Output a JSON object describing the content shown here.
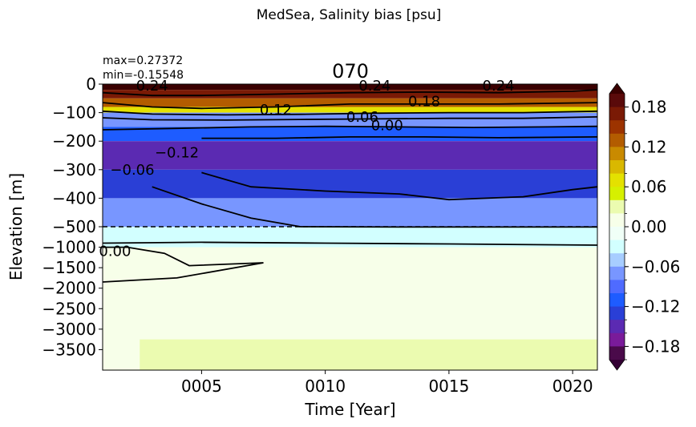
{
  "chart_data": {
    "type": "heatmap",
    "suptitle": "MedSea, Salinity bias [psu]",
    "title": "070",
    "stats": {
      "max": "max=0.27372",
      "min": "min=-0.15548"
    },
    "xlabel": "Time [Year]",
    "ylabel": "Elevation [m]",
    "x_ticks": [
      "0005",
      "0010",
      "0015",
      "0020"
    ],
    "x_tick_values": [
      5,
      10,
      15,
      20
    ],
    "xlim": [
      1,
      21
    ],
    "y_ticks": [
      "0",
      "−100",
      "−200",
      "−300",
      "−400",
      "−500",
      "−1000",
      "−1500",
      "−2000",
      "−2500",
      "−3000",
      "−3500"
    ],
    "y_upper_range": [
      -500,
      0
    ],
    "y_lower_range": [
      -4000,
      -500
    ],
    "split_line": -500,
    "colorbar": {
      "ticks": [
        "0.18",
        "0.12",
        "0.06",
        "0.00",
        "−0.06",
        "−0.12",
        "−0.18"
      ],
      "tick_values": [
        0.18,
        0.12,
        0.06,
        0.0,
        -0.06,
        -0.12,
        -0.18
      ],
      "range": [
        -0.2,
        0.2
      ],
      "extend": "both",
      "levels": [
        {
          "from": 0.18,
          "to": 0.2,
          "color": "#5a0a0a"
        },
        {
          "from": 0.16,
          "to": 0.18,
          "color": "#7a1a05"
        },
        {
          "from": 0.14,
          "to": 0.16,
          "color": "#9c3300"
        },
        {
          "from": 0.12,
          "to": 0.14,
          "color": "#b35c00"
        },
        {
          "from": 0.1,
          "to": 0.12,
          "color": "#c98a00"
        },
        {
          "from": 0.08,
          "to": 0.1,
          "color": "#d9b800"
        },
        {
          "from": 0.06,
          "to": 0.08,
          "color": "#e4e100"
        },
        {
          "from": 0.04,
          "to": 0.06,
          "color": "#d6f000"
        },
        {
          "from": 0.02,
          "to": 0.04,
          "color": "#ebfbb0"
        },
        {
          "from": 0.0,
          "to": 0.02,
          "color": "#f7ffe9"
        },
        {
          "from": -0.02,
          "to": 0.0,
          "color": "#f0fff7"
        },
        {
          "from": -0.04,
          "to": -0.02,
          "color": "#d2ffff"
        },
        {
          "from": -0.06,
          "to": -0.04,
          "color": "#a7cdff"
        },
        {
          "from": -0.08,
          "to": -0.06,
          "color": "#7896ff"
        },
        {
          "from": -0.1,
          "to": -0.08,
          "color": "#4f6bff"
        },
        {
          "from": -0.12,
          "to": -0.1,
          "color": "#1e5cff"
        },
        {
          "from": -0.14,
          "to": -0.12,
          "color": "#2a3fd6"
        },
        {
          "from": -0.16,
          "to": -0.14,
          "color": "#5b2ab2"
        },
        {
          "from": -0.18,
          "to": -0.16,
          "color": "#7a1b9a"
        },
        {
          "from": -0.2,
          "to": -0.18,
          "color": "#4a0a4a"
        }
      ],
      "under_color": "#330033",
      "over_color": "#3a0000"
    },
    "contour_labels": [
      {
        "text": "0.24",
        "x": 3,
        "depth": -5
      },
      {
        "text": "0.24",
        "x": 12,
        "depth": -5
      },
      {
        "text": "0.24",
        "x": 17,
        "depth": -5
      },
      {
        "text": "0.18",
        "x": 14,
        "depth": -60
      },
      {
        "text": "0.12",
        "x": 8,
        "depth": -90
      },
      {
        "text": "0.06",
        "x": 11.5,
        "depth": -115
      },
      {
        "text": "0.00",
        "x": 12.5,
        "depth": -145
      },
      {
        "text": "−0.12",
        "x": 4,
        "depth": -240
      },
      {
        "text": "−0.06",
        "x": 2.2,
        "depth": -300
      },
      {
        "text": "0.00",
        "x": 1.5,
        "depth": -1100
      }
    ],
    "contours": [
      {
        "level": 0.18,
        "points": [
          [
            1,
            -30
          ],
          [
            3,
            -40
          ],
          [
            5,
            -40
          ],
          [
            8,
            -35
          ],
          [
            11,
            -30
          ],
          [
            14,
            -28
          ],
          [
            17,
            -30
          ],
          [
            20,
            -25
          ],
          [
            21,
            -20
          ]
        ]
      },
      {
        "level": 0.12,
        "points": [
          [
            1,
            -65
          ],
          [
            3,
            -80
          ],
          [
            5,
            -85
          ],
          [
            8,
            -80
          ],
          [
            11,
            -70
          ],
          [
            14,
            -70
          ],
          [
            17,
            -70
          ],
          [
            21,
            -65
          ]
        ]
      },
      {
        "level": 0.06,
        "points": [
          [
            1,
            -95
          ],
          [
            3,
            -105
          ],
          [
            6,
            -108
          ],
          [
            9,
            -106
          ],
          [
            12,
            -102
          ],
          [
            15,
            -100
          ],
          [
            18,
            -100
          ],
          [
            21,
            -95
          ]
        ]
      },
      {
        "level": 0.0,
        "points": [
          [
            1,
            -118
          ],
          [
            3,
            -125
          ],
          [
            6,
            -126
          ],
          [
            9,
            -124
          ],
          [
            12,
            -122
          ],
          [
            15,
            -120
          ],
          [
            18,
            -120
          ],
          [
            21,
            -115
          ]
        ]
      },
      {
        "level": -0.06,
        "points": [
          [
            1,
            -160
          ],
          [
            4,
            -155
          ],
          [
            7,
            -150
          ],
          [
            10,
            -148
          ],
          [
            13,
            -150
          ],
          [
            16,
            -152
          ],
          [
            19,
            -150
          ],
          [
            21,
            -148
          ]
        ]
      },
      {
        "level": -0.12,
        "points": [
          [
            5,
            -190
          ],
          [
            8,
            -190
          ],
          [
            11,
            -185
          ],
          [
            14,
            -185
          ],
          [
            17,
            -188
          ],
          [
            21,
            -185
          ]
        ]
      },
      {
        "level": -0.12,
        "points": [
          [
            5,
            -310
          ],
          [
            7,
            -360
          ],
          [
            10,
            -375
          ],
          [
            13,
            -385
          ],
          [
            15,
            -405
          ],
          [
            18,
            -395
          ],
          [
            20,
            -370
          ],
          [
            21,
            -360
          ]
        ]
      },
      {
        "level": -0.06,
        "points": [
          [
            3,
            -360
          ],
          [
            5,
            -420
          ],
          [
            7,
            -470
          ],
          [
            9,
            -500
          ],
          [
            13,
            -508
          ],
          [
            18,
            -508
          ],
          [
            21,
            -508
          ]
        ]
      },
      {
        "level": 0.0,
        "points": [
          [
            1,
            -900
          ],
          [
            5,
            -880
          ],
          [
            10,
            -900
          ],
          [
            15,
            -920
          ],
          [
            21,
            -950
          ]
        ]
      },
      {
        "level": 0.0,
        "points": [
          [
            1,
            -1850
          ],
          [
            4,
            -1750
          ],
          [
            7.5,
            -1380
          ],
          [
            4.5,
            -1450
          ],
          [
            3.5,
            -1150
          ],
          [
            2,
            -1000
          ],
          [
            1,
            -1000
          ]
        ]
      }
    ],
    "cells": [
      {
        "x0": 1,
        "x1": 21,
        "d0": 0,
        "d1": -20,
        "value": 0.22
      },
      {
        "x0": 1,
        "x1": 21,
        "d0": -20,
        "d1": -50,
        "value": 0.17
      },
      {
        "x0": 1,
        "x1": 21,
        "d0": -50,
        "d1": -80,
        "value": 0.12
      },
      {
        "x0": 1,
        "x1": 21,
        "d0": -80,
        "d1": -100,
        "value": 0.07
      },
      {
        "x0": 1,
        "x1": 21,
        "d0": -100,
        "d1": -150,
        "value": -0.07
      },
      {
        "x0": 1,
        "x1": 21,
        "d0": -150,
        "d1": -200,
        "value": -0.11
      },
      {
        "x0": 1,
        "x1": 21,
        "d0": -200,
        "d1": -300,
        "value": -0.15
      },
      {
        "x0": 1,
        "x1": 21,
        "d0": -300,
        "d1": -400,
        "value": -0.13
      },
      {
        "x0": 1,
        "x1": 21,
        "d0": -400,
        "d1": -500,
        "value": -0.07
      },
      {
        "x0": 1,
        "x1": 21,
        "d0": -500,
        "d1": -1000,
        "value": -0.03
      },
      {
        "x0": 1,
        "x1": 21,
        "d0": -1000,
        "d1": -4000,
        "value": 0.01
      },
      {
        "x0": 2.5,
        "x1": 21,
        "d0": -3250,
        "d1": -4000,
        "value": 0.03
      }
    ]
  }
}
